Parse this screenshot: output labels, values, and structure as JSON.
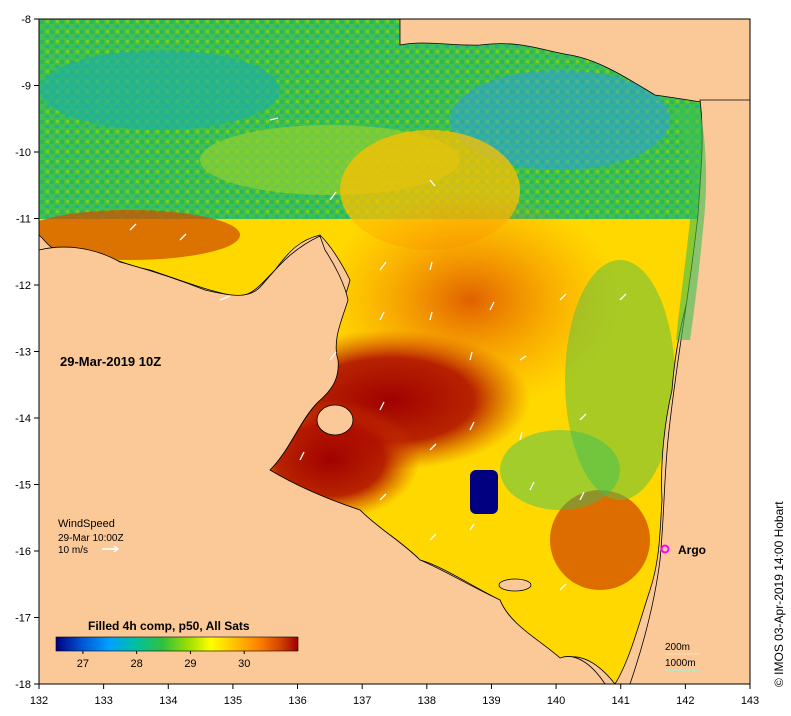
{
  "map": {
    "date_label": "29-Mar-2019 10Z",
    "wind_legend": {
      "title": "WindSpeed",
      "time": "29-Mar 10:00Z",
      "scale": "10 m/s"
    },
    "colorbar": {
      "title": "Filled 4h comp, p50, All Sats",
      "ticks": [
        "27",
        "28",
        "29",
        "30"
      ],
      "range": [
        26.5,
        31.0
      ],
      "colors": [
        "#000080",
        "#0050d0",
        "#00a0ff",
        "#00c0a0",
        "#30c040",
        "#a0e000",
        "#ffff00",
        "#ffc000",
        "#ff8000",
        "#d04000",
        "#a00000"
      ]
    },
    "argo_label": "Argo",
    "contours": [
      "200m",
      "1000m"
    ],
    "credit": "© IMOS 03-Apr-2019 14:00 Hobart",
    "x_ticks": [
      "132",
      "133",
      "134",
      "135",
      "136",
      "137",
      "138",
      "139",
      "140",
      "141",
      "142",
      "143"
    ],
    "y_ticks": [
      "-8",
      "-9",
      "-10",
      "-11",
      "-12",
      "-13",
      "-14",
      "-15",
      "-16",
      "-17",
      "-18"
    ],
    "colors": {
      "land": "#fbc898",
      "warm": "#a00000",
      "cool": "#00a0ff",
      "argo": "#ff00ff"
    }
  }
}
